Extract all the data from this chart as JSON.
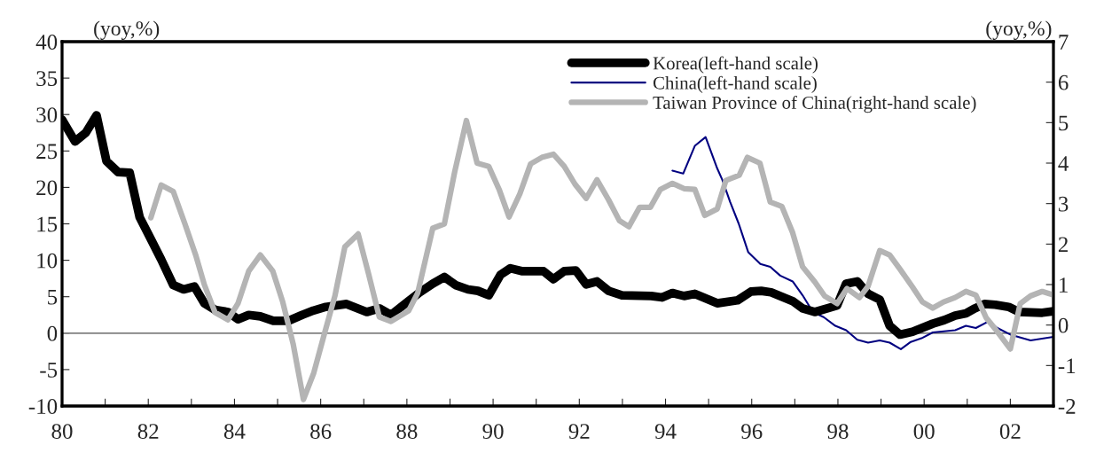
{
  "chart_data": {
    "type": "line",
    "ylabel": "(yoy,%)",
    "y2label": "(yoy,%)",
    "xlim": [
      1980,
      2003
    ],
    "xticks": [
      {
        "value": 1980,
        "label": "80"
      },
      {
        "value": 1981,
        "label": null
      },
      {
        "value": 1982,
        "label": "82"
      },
      {
        "value": 1983,
        "label": null
      },
      {
        "value": 1984,
        "label": "84"
      },
      {
        "value": 1985,
        "label": null
      },
      {
        "value": 1986,
        "label": "86"
      },
      {
        "value": 1987,
        "label": null
      },
      {
        "value": 1988,
        "label": "88"
      },
      {
        "value": 1989,
        "label": null
      },
      {
        "value": 1990,
        "label": "90"
      },
      {
        "value": 1991,
        "label": null
      },
      {
        "value": 1992,
        "label": "92"
      },
      {
        "value": 1993,
        "label": null
      },
      {
        "value": 1994,
        "label": "94"
      },
      {
        "value": 1995,
        "label": null
      },
      {
        "value": 1996,
        "label": "96"
      },
      {
        "value": 1997,
        "label": null
      },
      {
        "value": 1998,
        "label": "98"
      },
      {
        "value": 1999,
        "label": null
      },
      {
        "value": 2000,
        "label": "00"
      },
      {
        "value": 2001,
        "label": null
      },
      {
        "value": 2002,
        "label": "02"
      }
    ],
    "ylim": [
      -10,
      40
    ],
    "yticks": [
      -10,
      -5,
      0,
      5,
      10,
      15,
      20,
      25,
      30,
      35,
      40
    ],
    "y2lim": [
      -2,
      7
    ],
    "y2ticks": [
      -2,
      -1,
      0,
      1,
      2,
      3,
      4,
      5,
      6,
      7
    ],
    "ref_lines": [
      {
        "axis": "y",
        "value": 0,
        "color": "#808080"
      }
    ],
    "legend": "top right",
    "grid": false,
    "series": [
      {
        "name": "Korea(left-hand scale)",
        "color": "#000000",
        "axis": "y",
        "x": [
          1980.0,
          1980.3,
          1980.55,
          1980.8,
          1981.03,
          1981.3,
          1981.57,
          1981.8,
          1982.06,
          1982.3,
          1982.58,
          1982.82,
          1983.07,
          1983.3,
          1983.55,
          1983.85,
          1984.08,
          1984.33,
          1984.6,
          1984.9,
          1985.26,
          1985.57,
          1985.83,
          1986.12,
          1986.6,
          1987.07,
          1987.36,
          1987.63,
          1988.04,
          1988.3,
          1988.6,
          1988.87,
          1989.13,
          1989.42,
          1989.65,
          1989.9,
          1990.17,
          1990.4,
          1990.68,
          1991.17,
          1991.4,
          1991.65,
          1991.92,
          1992.16,
          1992.41,
          1992.68,
          1992.99,
          1993.67,
          1993.92,
          1994.16,
          1994.43,
          1994.68,
          1995.2,
          1995.67,
          1995.98,
          1996.22,
          1996.45,
          1996.7,
          1996.95,
          1997.18,
          1997.46,
          1997.98,
          1998.19,
          1998.45,
          1998.7,
          1998.97,
          1999.2,
          1999.44,
          1999.73,
          2000.2,
          2000.47,
          2000.72,
          2000.97,
          2001.18,
          2001.4,
          2001.65,
          2001.96,
          2002.2,
          2002.74,
          2003.0
        ],
        "values": [
          29.3,
          26.3,
          27.5,
          29.9,
          23.6,
          22.1,
          22.0,
          15.9,
          12.9,
          10.1,
          6.6,
          6.0,
          6.4,
          4.1,
          3.2,
          2.9,
          1.9,
          2.5,
          2.3,
          1.7,
          1.7,
          2.5,
          3.1,
          3.6,
          4.0,
          2.9,
          3.4,
          2.5,
          4.4,
          5.6,
          6.8,
          7.7,
          6.6,
          6.0,
          5.8,
          5.2,
          8.0,
          8.9,
          8.5,
          8.5,
          7.4,
          8.5,
          8.6,
          6.7,
          7.1,
          5.8,
          5.2,
          5.1,
          4.9,
          5.5,
          5.1,
          5.4,
          4.1,
          4.5,
          5.7,
          5.8,
          5.6,
          5.0,
          4.4,
          3.4,
          2.9,
          3.8,
          6.8,
          7.1,
          5.4,
          4.6,
          1.0,
          -0.2,
          0.2,
          1.3,
          1.8,
          2.4,
          2.7,
          3.4,
          4.0,
          3.9,
          3.6,
          2.9,
          2.8,
          3.0
        ]
      },
      {
        "name": "China(left-hand scale)",
        "color": "#000080",
        "axis": "y",
        "x": [
          1994.16,
          1994.41,
          1994.68,
          1994.93,
          1995.2,
          1995.32,
          1995.5,
          1995.7,
          1995.92,
          1996.2,
          1996.43,
          1996.66,
          1996.95,
          1997.18,
          1997.42,
          1997.67,
          1997.94,
          1998.19,
          1998.45,
          1998.7,
          1998.97,
          1999.2,
          1999.46,
          1999.69,
          1999.94,
          2000.2,
          2000.72,
          2000.97,
          2001.2,
          2001.49,
          2001.7,
          2002.0,
          2002.47,
          2003.0
        ],
        "values": [
          22.3,
          21.9,
          25.7,
          26.9,
          22.6,
          21.0,
          18.0,
          15.0,
          11.1,
          9.5,
          9.1,
          7.9,
          7.1,
          5.2,
          2.9,
          2.2,
          1.0,
          0.4,
          -0.9,
          -1.3,
          -1.0,
          -1.3,
          -2.2,
          -1.2,
          -0.7,
          0.1,
          0.4,
          1.0,
          0.7,
          1.6,
          0.7,
          -0.2,
          -1.0,
          -0.5
        ]
      },
      {
        "name": "Taiwan Province of China(right-hand scale)",
        "color": "#b4b4b4",
        "axis": "y2",
        "x": [
          1982.06,
          1982.3,
          1982.58,
          1982.85,
          1983.1,
          1983.3,
          1983.55,
          1983.85,
          1984.08,
          1984.33,
          1984.6,
          1984.89,
          1985.12,
          1985.36,
          1985.6,
          1985.84,
          1986.08,
          1986.33,
          1986.56,
          1986.87,
          1987.11,
          1987.36,
          1987.63,
          1988.04,
          1988.25,
          1988.6,
          1988.87,
          1989.11,
          1989.38,
          1989.63,
          1989.9,
          1990.14,
          1990.37,
          1990.62,
          1990.87,
          1991.13,
          1991.4,
          1991.65,
          1991.9,
          1992.16,
          1992.41,
          1992.68,
          1992.93,
          1993.15,
          1993.4,
          1993.65,
          1993.88,
          1994.16,
          1994.43,
          1994.68,
          1994.91,
          1995.2,
          1995.4,
          1995.71,
          1995.9,
          1996.19,
          1996.43,
          1996.7,
          1996.95,
          1997.18,
          1997.46,
          1997.69,
          1997.98,
          1998.21,
          1998.5,
          1998.7,
          1998.97,
          1999.2,
          1999.44,
          1999.73,
          1999.96,
          2000.2,
          2000.45,
          2000.72,
          2000.97,
          2001.2,
          2001.44,
          2001.69,
          2002.0,
          2002.23,
          2002.47,
          2002.74,
          2003.0
        ],
        "values": [
          2.65,
          3.46,
          3.3,
          2.5,
          1.73,
          1.0,
          0.31,
          0.13,
          0.53,
          1.33,
          1.73,
          1.33,
          0.57,
          -0.46,
          -1.84,
          -1.18,
          -0.24,
          0.72,
          1.93,
          2.25,
          1.27,
          0.2,
          0.09,
          0.35,
          0.79,
          2.39,
          2.5,
          3.79,
          5.05,
          4.0,
          3.92,
          3.35,
          2.67,
          3.24,
          3.98,
          4.14,
          4.22,
          3.92,
          3.48,
          3.13,
          3.59,
          3.09,
          2.58,
          2.43,
          2.91,
          2.91,
          3.35,
          3.5,
          3.37,
          3.35,
          2.71,
          2.87,
          3.57,
          3.7,
          4.14,
          4.0,
          3.04,
          2.93,
          2.28,
          1.44,
          1.07,
          0.72,
          0.53,
          0.9,
          0.68,
          0.96,
          1.84,
          1.73,
          1.38,
          0.94,
          0.57,
          0.42,
          0.57,
          0.68,
          0.83,
          0.74,
          0.18,
          -0.15,
          -0.59,
          0.53,
          0.72,
          0.83,
          0.74
        ]
      }
    ]
  }
}
